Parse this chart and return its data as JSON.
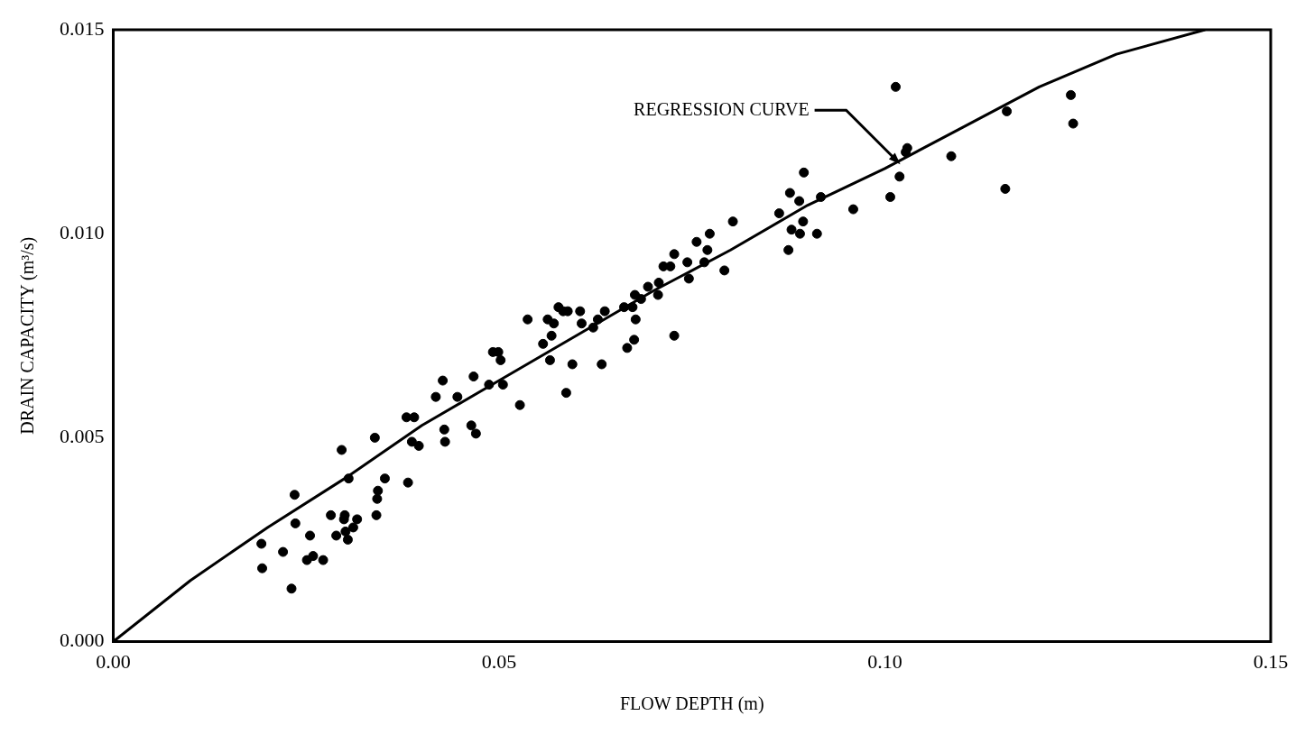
{
  "chart_data": {
    "type": "scatter",
    "xlabel": "FLOW DEPTH (m)",
    "ylabel": "DRAIN CAPACITY (m³/s)",
    "xlim": [
      0,
      0.15
    ],
    "ylim": [
      0,
      0.015
    ],
    "xticks": [
      {
        "value": 0,
        "label": "0.00"
      },
      {
        "value": 0.05,
        "label": "0.05"
      },
      {
        "value": 0.1,
        "label": "0.10"
      },
      {
        "value": 0.15,
        "label": "0.15"
      }
    ],
    "yticks": [
      {
        "value": 0,
        "label": "0.000"
      },
      {
        "value": 0.005,
        "label": "0.005"
      },
      {
        "value": 0.01,
        "label": "0.010"
      },
      {
        "value": 0.015,
        "label": "0.015"
      }
    ],
    "grid": false,
    "legend": false,
    "series": [
      {
        "type": "scatter",
        "marker": "circle",
        "color": "#000000",
        "x": [
          0.0192,
          0.0193,
          0.022,
          0.0231,
          0.0235,
          0.0236,
          0.0251,
          0.0255,
          0.0259,
          0.0272,
          0.0282,
          0.0289,
          0.0296,
          0.0299,
          0.0301,
          0.03,
          0.0304,
          0.0305,
          0.0311,
          0.0316,
          0.0339,
          0.0341,
          0.0342,
          0.0343,
          0.0352,
          0.038,
          0.0382,
          0.0387,
          0.039,
          0.0396,
          0.0418,
          0.0427,
          0.0429,
          0.043,
          0.0446,
          0.0464,
          0.0467,
          0.047,
          0.0487,
          0.0492,
          0.0499,
          0.0502,
          0.0505,
          0.0527,
          0.0537,
          0.0557,
          0.0566,
          0.0563,
          0.0568,
          0.0571,
          0.0577,
          0.0583,
          0.0587,
          0.0589,
          0.0595,
          0.0605,
          0.0607,
          0.0622,
          0.0628,
          0.0633,
          0.0637,
          0.0662,
          0.0673,
          0.0666,
          0.0675,
          0.0677,
          0.0676,
          0.0684,
          0.0693,
          0.0706,
          0.0707,
          0.0727,
          0.0713,
          0.0722,
          0.0727,
          0.0744,
          0.0746,
          0.0756,
          0.0766,
          0.077,
          0.0773,
          0.0792,
          0.0803,
          0.0863,
          0.0875,
          0.0877,
          0.0879,
          0.089,
          0.0895,
          0.0889,
          0.0894,
          0.0912,
          0.0917,
          0.0959,
          0.1007,
          0.1019,
          0.1027,
          0.1029,
          0.1086,
          0.1014,
          0.1158,
          0.1156,
          0.1244,
          0.1241
        ],
        "values": [
          0.0024,
          0.0018,
          0.0022,
          0.0013,
          0.0036,
          0.0029,
          0.002,
          0.0026,
          0.0021,
          0.002,
          0.0031,
          0.0026,
          0.0047,
          0.003,
          0.0027,
          0.0031,
          0.0025,
          0.004,
          0.0028,
          0.003,
          0.005,
          0.0031,
          0.0035,
          0.0037,
          0.004,
          0.0055,
          0.0039,
          0.0049,
          0.0055,
          0.0048,
          0.006,
          0.0064,
          0.0052,
          0.0049,
          0.006,
          0.0053,
          0.0065,
          0.0051,
          0.0063,
          0.0071,
          0.0071,
          0.0069,
          0.0063,
          0.0058,
          0.0079,
          0.0073,
          0.0069,
          0.0079,
          0.0075,
          0.0078,
          0.0082,
          0.0081,
          0.0061,
          0.0081,
          0.0068,
          0.0081,
          0.0078,
          0.0077,
          0.0079,
          0.0068,
          0.0081,
          0.0082,
          0.0082,
          0.0072,
          0.0074,
          0.0079,
          0.0085,
          0.0084,
          0.0087,
          0.0085,
          0.0088,
          0.0075,
          0.0092,
          0.0092,
          0.0095,
          0.0093,
          0.0089,
          0.0098,
          0.0093,
          0.0096,
          0.01,
          0.0091,
          0.0103,
          0.0105,
          0.0096,
          0.011,
          0.0101,
          0.01,
          0.0115,
          0.0108,
          0.0103,
          0.01,
          0.0109,
          0.0106,
          0.0109,
          0.0114,
          0.012,
          0.0121,
          0.0119,
          0.0136,
          0.013,
          0.0111,
          0.0127,
          0.0134
        ]
      },
      {
        "type": "line",
        "marker": "none",
        "color": "#000000",
        "x": [
          0,
          0.01,
          0.02,
          0.03,
          0.04,
          0.05,
          0.06,
          0.07,
          0.08,
          0.09,
          0.1,
          0.11,
          0.12,
          0.13,
          0.1415
        ],
        "values": [
          0,
          0.0015,
          0.0028,
          0.004,
          0.0053,
          0.0064,
          0.0075,
          0.0086,
          0.0096,
          0.0107,
          0.0116,
          0.0126,
          0.0136,
          0.0144,
          0.015
        ]
      }
    ],
    "annotations": [
      {
        "text": "REGRESSION CURVE",
        "x": 0.102,
        "y": 0.0117
      }
    ]
  }
}
